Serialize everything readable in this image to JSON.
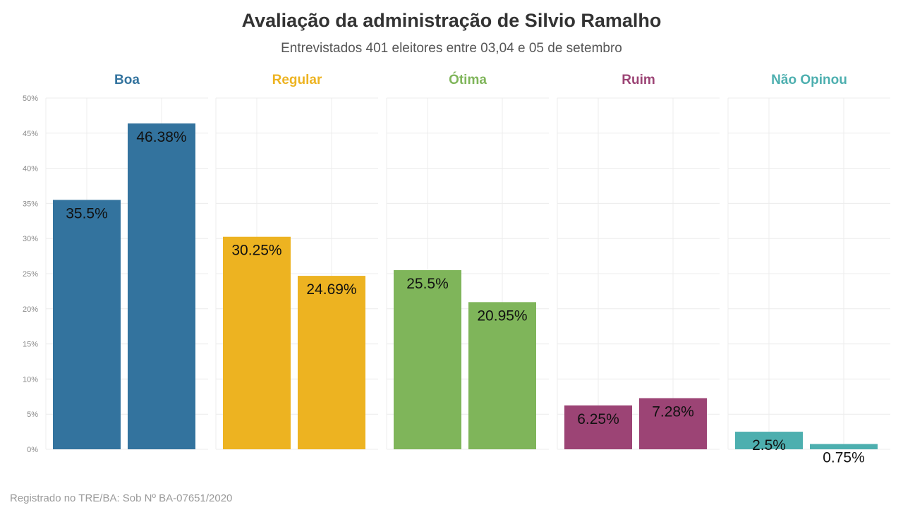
{
  "title": "Avaliação da administração de Silvio Ramalho",
  "subtitle": "Entrevistados 401 eleitores entre 03,04 e 05 de setembro",
  "footnote": "Registrado no TRE/BA: Sob Nº BA-07651/2020",
  "chart_data": {
    "type": "bar",
    "layout": "small-multiples",
    "ylim": [
      0,
      50
    ],
    "yticks": [
      0,
      5,
      10,
      15,
      20,
      25,
      30,
      35,
      40,
      45,
      50
    ],
    "ytick_labels": [
      "0%",
      "5%",
      "10%",
      "15%",
      "20%",
      "25%",
      "30%",
      "35%",
      "40%",
      "45%",
      "50%"
    ],
    "grid": true,
    "panels": [
      {
        "name": "Boa",
        "color": "#33739e",
        "values": [
          35.5,
          46.38
        ],
        "labels": [
          "35.5%",
          "46.38%"
        ]
      },
      {
        "name": "Regular",
        "color": "#edb321",
        "values": [
          30.25,
          24.69
        ],
        "labels": [
          "30.25%",
          "24.69%"
        ]
      },
      {
        "name": "Ótima",
        "color": "#7fb55a",
        "values": [
          25.5,
          20.95
        ],
        "labels": [
          "25.5%",
          "20.95%"
        ]
      },
      {
        "name": "Ruim",
        "color": "#9c4475",
        "values": [
          6.25,
          7.28
        ],
        "labels": [
          "6.25%",
          "7.28%"
        ]
      },
      {
        "name": "Não Opinou",
        "color": "#4dafaf",
        "values": [
          2.5,
          0.75
        ],
        "labels": [
          "2.5%",
          "0.75%"
        ]
      }
    ]
  }
}
